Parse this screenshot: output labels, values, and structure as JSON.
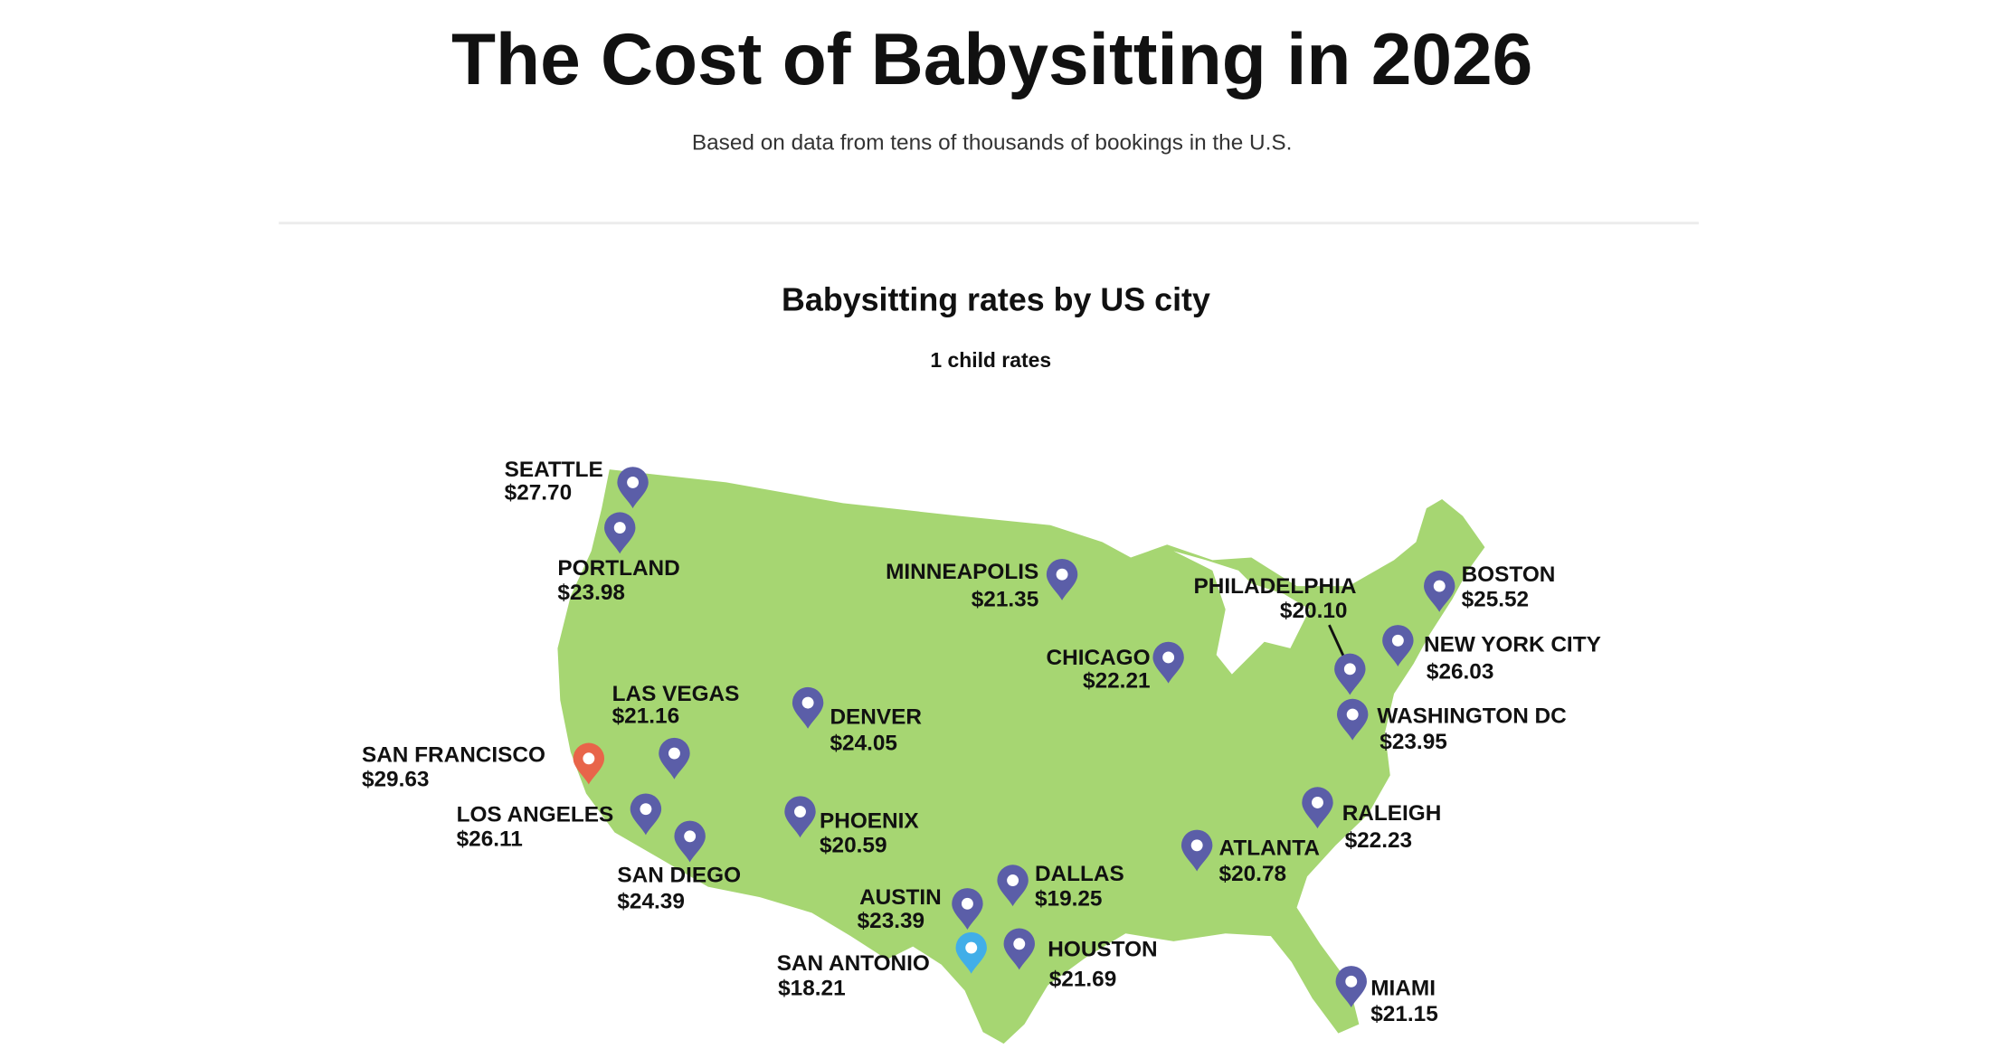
{
  "header": {
    "title": "The Cost of Babysitting in 2026",
    "subtitle": "Based on data from tens of thousands of bookings in the U.S."
  },
  "map": {
    "title": "Babysitting rates by US city",
    "subtitle": "1 child rates",
    "cities": [
      {
        "name": "SEATTLE",
        "rate": "$27.70"
      },
      {
        "name": "PORTLAND",
        "rate": "$23.98"
      },
      {
        "name": "MINNEAPOLIS",
        "rate": "$21.35"
      },
      {
        "name": "PHILADELPHIA",
        "rate": "$20.10"
      },
      {
        "name": "BOSTON",
        "rate": "$25.52"
      },
      {
        "name": "NEW YORK CITY",
        "rate": "$26.03"
      },
      {
        "name": "CHICAGO",
        "rate": "$22.21"
      },
      {
        "name": "WASHINGTON DC",
        "rate": "$23.95"
      },
      {
        "name": "LAS VEGAS",
        "rate": "$21.16"
      },
      {
        "name": "DENVER",
        "rate": "$24.05"
      },
      {
        "name": "SAN FRANCISCO",
        "rate": "$29.63"
      },
      {
        "name": "LOS ANGELES",
        "rate": "$26.11"
      },
      {
        "name": "SAN DIEGO",
        "rate": "$24.39"
      },
      {
        "name": "PHOENIX",
        "rate": "$20.59"
      },
      {
        "name": "RALEIGH",
        "rate": "$22.23"
      },
      {
        "name": "ATLANTA",
        "rate": "$20.78"
      },
      {
        "name": "DALLAS",
        "rate": "$19.25"
      },
      {
        "name": "AUSTIN",
        "rate": "$23.39"
      },
      {
        "name": "SAN ANTONIO",
        "rate": "$18.21"
      },
      {
        "name": "HOUSTON",
        "rate": "$21.69"
      },
      {
        "name": "MIAMI",
        "rate": "$21.15"
      }
    ]
  }
}
